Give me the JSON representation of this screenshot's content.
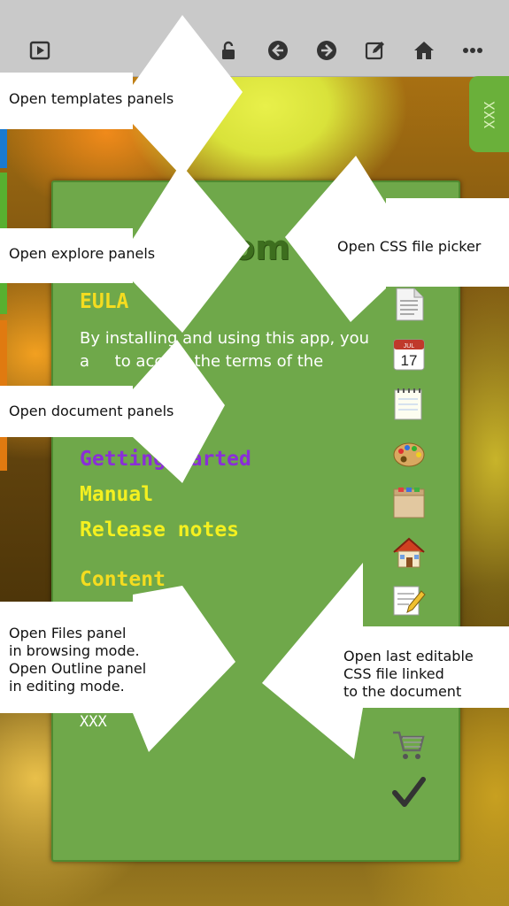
{
  "toolbar": {
    "buttons": [
      {
        "name": "preview",
        "icon": "play-icon"
      },
      {
        "name": "lock",
        "icon": "unlock-icon"
      },
      {
        "name": "back",
        "icon": "arrow-left-icon"
      },
      {
        "name": "forward",
        "icon": "arrow-right-icon"
      },
      {
        "name": "edit",
        "icon": "edit-icon"
      },
      {
        "name": "home",
        "icon": "home-icon"
      },
      {
        "name": "more",
        "icon": "more-icon"
      }
    ]
  },
  "side_tab": {
    "label": "XXX"
  },
  "panel": {
    "title": "om",
    "eula_heading": "EULA",
    "eula_text": "By installing and using this app, you a     to accept the terms of the",
    "links": {
      "getting_started": "Getting  arted",
      "manual": "Manual",
      "release_notes": "Release notes"
    },
    "content_heading": "Content",
    "footer_text": "XXX",
    "colors": {
      "heading": "#f4dc20",
      "link_visited": "#8a2ed8",
      "panel": "#6fa84a"
    }
  },
  "callouts": {
    "templates": "Open templates panels",
    "explore": "Open explore panels",
    "css_picker": "Open CSS file picker",
    "document": "Open document panels",
    "files_1": "Open Files panel",
    "files_2": "in browsing mode.",
    "files_3": "Open Outline panel",
    "files_4": "in editing mode.",
    "last_css_1": "Open last editable",
    "last_css_2": "CSS file linked",
    "last_css_3": "to the document"
  }
}
